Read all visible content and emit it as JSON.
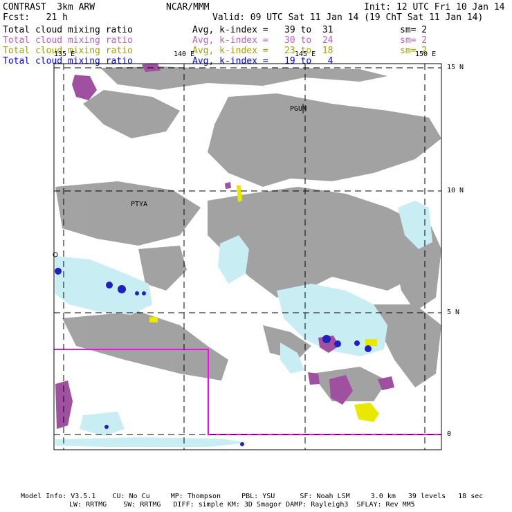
{
  "header": {
    "title": "CONTRAST  3km ARW",
    "center": "NCAR/MMM",
    "init": "Init: 12 UTC Fri 10 Jan 14",
    "fcst": "Fcst:   21 h",
    "valid": "Valid: 09 UTC Sat 11 Jan 14 (19 ChT Sat 11 Jan 14)"
  },
  "legend": [
    {
      "field": "Total cloud mixing ratio",
      "range": "Avg, k-index =   39 to  31",
      "sm": "sm= 2",
      "color": "#000000"
    },
    {
      "field": "Total cloud mixing ratio",
      "range": "Avg, k-index =   30 to  24",
      "sm": "sm= 2",
      "color": "#c060c0"
    },
    {
      "field": "Total cloud mixing ratio",
      "range": "Avg, k-index =   23 to  18",
      "sm": "sm= 2",
      "color": "#a0a000"
    },
    {
      "field": "Total cloud mixing ratio",
      "range": "Avg, k-index =   19 to   4",
      "sm": "",
      "color": "#0000ff"
    }
  ],
  "map": {
    "lon_labels": [
      "135 E",
      "140 E",
      "145 E",
      "150 E"
    ],
    "lat_labels": [
      "15 N",
      "10 N",
      "5 N",
      "0"
    ],
    "stations": [
      "PGUM",
      "PTYA"
    ],
    "colors": {
      "high_cloud": "#999999",
      "mid_cloud": "#a050a0",
      "low_cloud": "#e8e800",
      "shallow_cloud": "#c8eef4",
      "convective_core": "#2020c0",
      "domain_box": "#ff00ff",
      "grid": "#000000"
    }
  },
  "footer": {
    "line1": "Model Info: V3.5.1    CU: No Cu     MP: Thompson     PBL: YSU      SF: Noah LSM     3.0 km   39 levels   18 sec",
    "line2": "LW: RRTMG    SW: RRTMG   DIFF: simple KM: 3D Smagor DAMP: Rayleigh3  SFLAY: Rev MM5"
  }
}
